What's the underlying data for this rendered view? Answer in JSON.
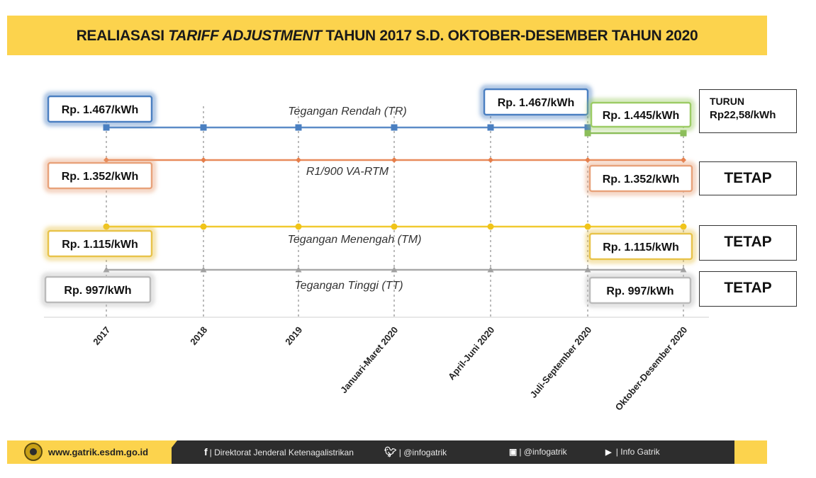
{
  "title": {
    "part1": "REALIASASI ",
    "part2": "TARIFF ADJUSTMENT",
    "part3": " TAHUN 2017 S.D. OKTOBER-DESEMBER TAHUN 2020"
  },
  "chart_data": {
    "type": "line",
    "categories": [
      "2017",
      "2018",
      "2019",
      "Januari-Maret 2020",
      "April-Juni 2020",
      "Juli-September 2020",
      "Oktober-Desember 2020"
    ],
    "series": [
      {
        "name": "Tegangan Rendah (TR)",
        "color": "#4a7fc1",
        "marker": "square",
        "values": [
          1467,
          1467,
          1467,
          1467,
          1467,
          1467,
          1445
        ],
        "change_color": "#8bbd5a",
        "labels": [
          "Rp. 1.467/kWh",
          "Rp. 1.467/kWh",
          "Rp. 1.445/kWh"
        ],
        "label_colors": [
          "#4a7fc1",
          "#4a7fc1",
          "#9ccc65"
        ]
      },
      {
        "name": "R1/900 VA-RTM",
        "color": "#e67e4a",
        "marker": "diamond",
        "values": [
          1352,
          1352,
          1352,
          1352,
          1352,
          1352,
          1352
        ],
        "labels": [
          "Rp. 1.352/kWh",
          "Rp. 1.352/kWh"
        ],
        "label_colors": [
          "#e8a27a",
          "#e8a27a"
        ]
      },
      {
        "name": "Tegangan Menengah (TM)",
        "color": "#f0c419",
        "marker": "circle",
        "values": [
          1115,
          1115,
          1115,
          1115,
          1115,
          1115,
          1115
        ],
        "labels": [
          "Rp. 1.115/kWh",
          "Rp. 1.115/kWh"
        ],
        "label_colors": [
          "#e8c34a",
          "#e8c34a"
        ]
      },
      {
        "name": "Tegangan Tinggi (TT)",
        "color": "#a0a0a0",
        "marker": "triangle",
        "values": [
          997,
          997,
          997,
          997,
          997,
          997,
          997
        ],
        "labels": [
          "Rp. 997/kWh",
          "Rp. 997/kWh"
        ],
        "label_colors": [
          "#bbbbbb",
          "#bbbbbb"
        ]
      }
    ]
  },
  "status": {
    "tr_line1": "TURUN",
    "tr_line2": "Rp22,58/kWh",
    "rtm": "TETAP",
    "tm": "TETAP",
    "tt": "TETAP"
  },
  "footer": {
    "website": "www.gatrik.esdm.go.id",
    "facebook": "Direktorat Jenderal Ketenagalistrikan",
    "twitter": "@infogatrik",
    "instagram": "@infogatrik",
    "youtube": "Info Gatrik"
  }
}
